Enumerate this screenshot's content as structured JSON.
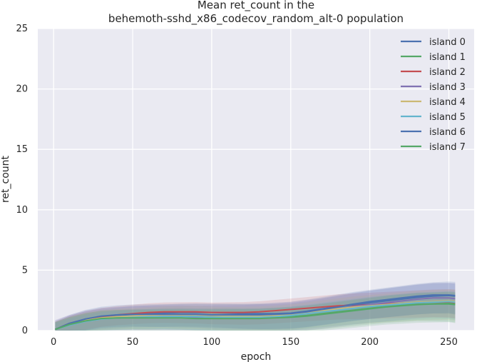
{
  "chart_data": {
    "type": "line",
    "title": "Mean ret_count in the",
    "subtitle": "behemoth-sshd_x86_codecov_random_alt-0 population",
    "xlabel": "epoch",
    "ylabel": "ret_count",
    "xlim": [
      -10,
      266
    ],
    "ylim": [
      0,
      25
    ],
    "xticks": [
      "0",
      "50",
      "100",
      "150",
      "200",
      "250"
    ],
    "yticks": [
      "0",
      "5",
      "10",
      "15",
      "20",
      "25"
    ],
    "grid": true,
    "background": "#eaeaf2",
    "legend_position": "top-right",
    "series": [
      {
        "name": "island 0",
        "color": "#4c72b0",
        "x": [
          1,
          10,
          20,
          30,
          40,
          50,
          60,
          70,
          80,
          90,
          100,
          110,
          120,
          130,
          140,
          150,
          160,
          170,
          180,
          190,
          200,
          210,
          220,
          230,
          240,
          250,
          254
        ],
        "y": [
          0.1,
          0.6,
          0.95,
          1.15,
          1.25,
          1.35,
          1.4,
          1.45,
          1.5,
          1.5,
          1.5,
          1.45,
          1.4,
          1.4,
          1.4,
          1.45,
          1.6,
          1.8,
          2.0,
          2.2,
          2.4,
          2.55,
          2.7,
          2.85,
          2.95,
          2.95,
          2.9
        ],
        "band": [
          1.0,
          1.6
        ]
      },
      {
        "name": "island 1",
        "color": "#55a868",
        "x": [
          1,
          10,
          20,
          30,
          40,
          50,
          60,
          70,
          80,
          90,
          100,
          110,
          120,
          130,
          140,
          150,
          160,
          170,
          180,
          190,
          200,
          210,
          220,
          230,
          240,
          250,
          254
        ],
        "y": [
          0.1,
          0.5,
          0.8,
          1.0,
          1.05,
          1.1,
          1.1,
          1.15,
          1.15,
          1.1,
          1.1,
          1.1,
          1.05,
          1.05,
          1.1,
          1.15,
          1.25,
          1.4,
          1.55,
          1.7,
          1.85,
          2.0,
          2.1,
          2.2,
          2.2,
          2.2,
          2.15
        ],
        "band": [
          1.0,
          1.5
        ]
      },
      {
        "name": "island 2",
        "color": "#c44e52",
        "x": [
          1,
          10,
          20,
          30,
          40,
          50,
          60,
          70,
          80,
          90,
          100,
          110,
          120,
          130,
          140,
          150,
          160,
          170,
          180,
          190,
          200,
          210,
          220,
          230,
          240,
          250,
          254
        ],
        "y": [
          0.1,
          0.55,
          0.9,
          1.15,
          1.3,
          1.4,
          1.5,
          1.55,
          1.55,
          1.55,
          1.5,
          1.5,
          1.5,
          1.55,
          1.65,
          1.75,
          1.85,
          1.95,
          2.05,
          2.1,
          2.15,
          2.2,
          2.25,
          2.3,
          2.35,
          2.35,
          2.3
        ],
        "band": [
          1.1,
          1.3
        ]
      },
      {
        "name": "island 3",
        "color": "#8172b2",
        "x": [
          1,
          10,
          20,
          30,
          40,
          50,
          60,
          70,
          80,
          90,
          100,
          110,
          120,
          130,
          140,
          150,
          160,
          170,
          180,
          190,
          200,
          210,
          220,
          230,
          240,
          250,
          254
        ],
        "y": [
          0.1,
          0.5,
          0.85,
          1.05,
          1.1,
          1.15,
          1.15,
          1.15,
          1.15,
          1.1,
          1.1,
          1.1,
          1.1,
          1.15,
          1.2,
          1.3,
          1.45,
          1.6,
          1.8,
          2.0,
          2.15,
          2.3,
          2.45,
          2.6,
          2.7,
          2.7,
          2.65
        ],
        "band": [
          1.3,
          1.7
        ]
      },
      {
        "name": "island 4",
        "color": "#ccb974",
        "x": [
          1,
          10,
          20,
          30,
          40,
          50,
          60,
          70,
          80,
          90,
          100,
          110,
          120,
          130,
          140,
          150,
          160,
          170,
          180,
          190,
          200,
          210,
          220,
          230,
          240,
          250,
          254
        ],
        "y": [
          0.1,
          0.5,
          0.85,
          1.05,
          1.15,
          1.2,
          1.25,
          1.3,
          1.3,
          1.3,
          1.25,
          1.2,
          1.2,
          1.2,
          1.25,
          1.35,
          1.5,
          1.65,
          1.8,
          1.95,
          2.05,
          2.15,
          2.25,
          2.35,
          2.4,
          2.45,
          2.4
        ],
        "band": [
          1.0,
          1.6
        ]
      },
      {
        "name": "island 5",
        "color": "#64b5cd",
        "x": [
          1,
          10,
          20,
          30,
          40,
          50,
          60,
          70,
          80,
          90,
          100,
          110,
          120,
          130,
          140,
          150,
          160,
          170,
          180,
          190,
          200,
          210,
          220,
          230,
          240,
          250,
          254
        ],
        "y": [
          0.1,
          0.45,
          0.75,
          0.95,
          1.05,
          1.1,
          1.15,
          1.15,
          1.15,
          1.15,
          1.1,
          1.1,
          1.1,
          1.1,
          1.15,
          1.25,
          1.4,
          1.55,
          1.7,
          1.85,
          2.0,
          2.1,
          2.2,
          2.3,
          2.35,
          2.4,
          2.35
        ],
        "band": [
          0.9,
          1.5
        ]
      },
      {
        "name": "island 6",
        "color": "#4c72b0",
        "x": [
          1,
          10,
          20,
          30,
          40,
          50,
          60,
          70,
          80,
          90,
          100,
          110,
          120,
          130,
          140,
          150,
          160,
          170,
          180,
          190,
          200,
          210,
          220,
          230,
          240,
          250,
          254
        ],
        "y": [
          0.1,
          0.55,
          0.95,
          1.2,
          1.3,
          1.35,
          1.35,
          1.35,
          1.35,
          1.35,
          1.3,
          1.3,
          1.3,
          1.3,
          1.35,
          1.4,
          1.55,
          1.75,
          1.95,
          2.15,
          2.3,
          2.45,
          2.6,
          2.75,
          2.85,
          2.9,
          2.85
        ],
        "band": [
          1.2,
          1.5
        ]
      },
      {
        "name": "island 7",
        "color": "#55a868",
        "x": [
          1,
          10,
          20,
          30,
          40,
          50,
          60,
          70,
          80,
          90,
          100,
          110,
          120,
          130,
          140,
          150,
          160,
          170,
          180,
          190,
          200,
          210,
          220,
          230,
          240,
          250,
          254
        ],
        "y": [
          0.1,
          0.5,
          0.8,
          1.0,
          1.05,
          1.05,
          1.05,
          1.05,
          1.05,
          1.0,
          1.0,
          1.0,
          1.0,
          1.0,
          1.05,
          1.1,
          1.2,
          1.35,
          1.5,
          1.65,
          1.8,
          1.95,
          2.05,
          2.15,
          2.2,
          2.25,
          2.2
        ],
        "band": [
          1.0,
          1.6
        ]
      }
    ]
  }
}
